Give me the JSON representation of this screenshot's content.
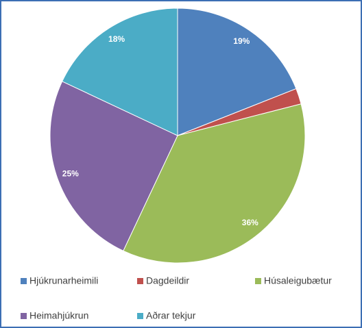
{
  "chart_data": {
    "type": "pie",
    "categories": [
      "Hjúkrunarheimili",
      "Dagdeildir",
      "Húsaleigubætur",
      "Heimahjúkrun",
      "Aðrar tekjur"
    ],
    "values": [
      19,
      2,
      36,
      25,
      18
    ],
    "value_labels": [
      "19%",
      null,
      "36%",
      "25%",
      "18%"
    ],
    "colors": [
      "#4f81bd",
      "#c0504d",
      "#9bbb59",
      "#8064a2",
      "#4bacc6"
    ],
    "legend": "bottom"
  }
}
